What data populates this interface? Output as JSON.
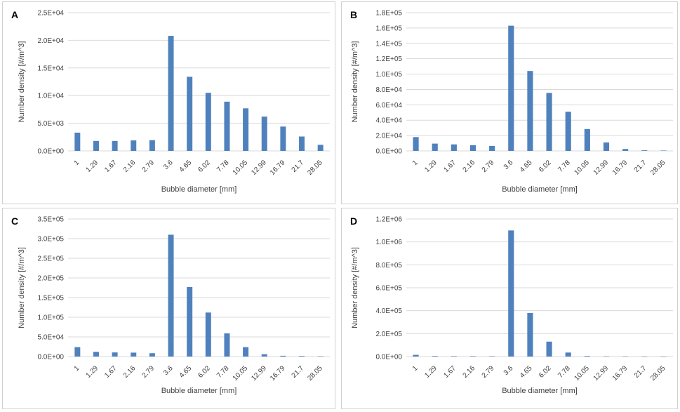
{
  "chart_data": [
    {
      "id": "A",
      "panel_label": "A",
      "type": "bar",
      "title": "",
      "xlabel": "Bubble diameter [mm]",
      "ylabel": "Number density [#/m^3]",
      "categories": [
        "1",
        "1.29",
        "1.67",
        "2.16",
        "2.79",
        "3.6",
        "4.65",
        "6.02",
        "7.78",
        "10.05",
        "12.99",
        "16.79",
        "21.7",
        "28.05"
      ],
      "values": [
        3300,
        1800,
        1800,
        1900,
        1950,
        20800,
        13400,
        10500,
        8900,
        7700,
        6200,
        4400,
        2600,
        1100
      ],
      "ylim": [
        0,
        25000
      ],
      "yticks": [
        0,
        5000,
        10000,
        15000,
        20000,
        25000
      ],
      "ytick_labels": [
        "0.0E+00",
        "5.0E+03",
        "1.0E+04",
        "1.5E+04",
        "2.0E+04",
        "2.5E+04"
      ],
      "grid": true,
      "color": "#4f81bd"
    },
    {
      "id": "B",
      "panel_label": "B",
      "type": "bar",
      "title": "",
      "xlabel": "Bubble diameter [mm]",
      "ylabel": "Number density [#/m^3]",
      "categories": [
        "1",
        "1.29",
        "1.67",
        "2.16",
        "2.79",
        "3.6",
        "4.65",
        "6.02",
        "7.78",
        "10.05",
        "12.99",
        "16.79",
        "21.7",
        "28.05"
      ],
      "values": [
        18000,
        9500,
        8500,
        7500,
        6500,
        163000,
        104000,
        75500,
        51000,
        28500,
        11000,
        2500,
        800,
        500
      ],
      "ylim": [
        0,
        180000
      ],
      "yticks": [
        0,
        20000,
        40000,
        60000,
        80000,
        100000,
        120000,
        140000,
        160000,
        180000
      ],
      "ytick_labels": [
        "0.0E+00",
        "2.0E+04",
        "4.0E+04",
        "6.0E+04",
        "8.0E+04",
        "1.0E+05",
        "1.2E+05",
        "1.4E+05",
        "1.6E+05",
        "1.8E+05"
      ],
      "grid": true,
      "color": "#4f81bd"
    },
    {
      "id": "C",
      "panel_label": "C",
      "type": "bar",
      "title": "",
      "xlabel": "Bubble diameter [mm]",
      "ylabel": "Number density [#/m^3]",
      "categories": [
        "1",
        "1.29",
        "1.67",
        "2.16",
        "2.79",
        "3.6",
        "4.65",
        "6.02",
        "7.78",
        "10.05",
        "12.99",
        "16.79",
        "21.7",
        "28.05"
      ],
      "values": [
        24000,
        12000,
        10500,
        10000,
        8500,
        310000,
        177000,
        112000,
        59000,
        24000,
        6000,
        2000,
        1500,
        1000
      ],
      "ylim": [
        0,
        350000
      ],
      "yticks": [
        0,
        50000,
        100000,
        150000,
        200000,
        250000,
        300000,
        350000
      ],
      "ytick_labels": [
        "0.0E+00",
        "5.0E+04",
        "1.0E+05",
        "1.5E+05",
        "2.0E+05",
        "2.5E+05",
        "3.0E+05",
        "3.5E+05"
      ],
      "grid": true,
      "color": "#4f81bd"
    },
    {
      "id": "D",
      "panel_label": "D",
      "type": "bar",
      "title": "",
      "xlabel": "Bubble diameter [mm]",
      "ylabel": "Number density [#/m^3]",
      "categories": [
        "1",
        "1.29",
        "1.67",
        "2.16",
        "2.79",
        "3.6",
        "4.65",
        "6.02",
        "7.78",
        "10.05",
        "12.99",
        "16.79",
        "21.7",
        "28.05"
      ],
      "values": [
        15000,
        5000,
        4000,
        4000,
        3500,
        1100000,
        380000,
        130000,
        35000,
        5000,
        2000,
        1500,
        1000,
        500
      ],
      "ylim": [
        0,
        1200000
      ],
      "yticks": [
        0,
        200000,
        400000,
        600000,
        800000,
        1000000,
        1200000
      ],
      "ytick_labels": [
        "0.0E+00",
        "2.0E+05",
        "4.0E+05",
        "6.0E+05",
        "8.0E+05",
        "1.0E+06",
        "1.2E+06"
      ],
      "grid": true,
      "color": "#4f81bd"
    }
  ]
}
